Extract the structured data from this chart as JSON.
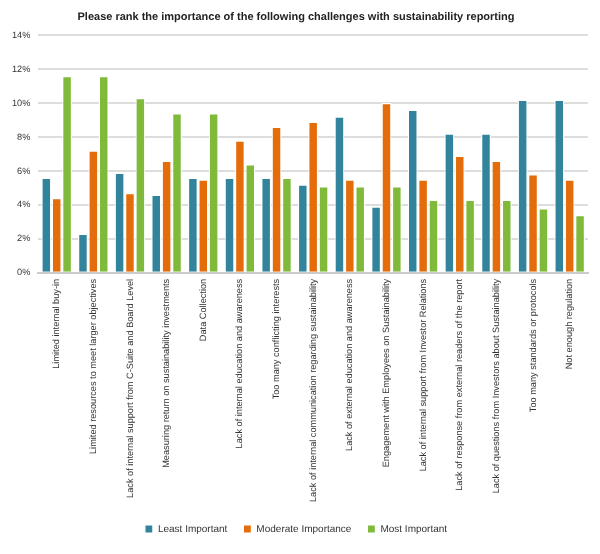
{
  "chart_data": {
    "type": "bar",
    "title": "Please rank the importance of the following challenges with sustainability reporting",
    "categories": [
      "Limited internal buy-in",
      "Limited resources to meet larger objectives",
      "Lack of internal support from C-Suite and Board Level",
      "Measuring return on sustainability investments",
      "Data Collection",
      "Lack of internal education and awareness",
      "Too many conflicting interests",
      "Lack of internal communication regarding sustainability",
      "Lack of external education and awareness",
      "Engagement with Employees on Sustainability",
      "Lack of internal support from Investor Relations",
      "Lack of response from external readers of the report",
      "Lack of questions from Investors about Sustainability",
      "Too many standards or protocols",
      "Not enough regulation"
    ],
    "series": [
      {
        "name": "Least Important",
        "color": "#31849b",
        "values": [
          5.6,
          2.3,
          5.9,
          4.6,
          5.6,
          5.6,
          5.6,
          5.2,
          9.2,
          3.9,
          9.6,
          8.2,
          8.2,
          10.2,
          10.2
        ]
      },
      {
        "name": "Moderate Importance",
        "color": "#e46c0a",
        "values": [
          4.4,
          7.2,
          4.7,
          6.6,
          5.5,
          7.8,
          8.6,
          8.9,
          5.5,
          10.0,
          5.5,
          6.9,
          6.6,
          5.8,
          5.5
        ]
      },
      {
        "name": "Most Important",
        "color": "#7fba3a",
        "values": [
          11.6,
          11.6,
          10.3,
          9.4,
          9.4,
          6.4,
          5.6,
          5.1,
          5.1,
          5.1,
          4.3,
          4.3,
          4.3,
          3.8,
          3.4
        ]
      }
    ],
    "ylim": [
      0,
      14
    ],
    "yticks": [
      {
        "value": 0,
        "label": "0%"
      },
      {
        "value": 2,
        "label": "2%"
      },
      {
        "value": 4,
        "label": "4%"
      },
      {
        "value": 6,
        "label": "6%"
      },
      {
        "value": 8,
        "label": "8%"
      },
      {
        "value": 10,
        "label": "10%"
      },
      {
        "value": 12,
        "label": "12%"
      },
      {
        "value": 14,
        "label": "14%"
      }
    ],
    "grid": "y",
    "legend": "bottom"
  }
}
